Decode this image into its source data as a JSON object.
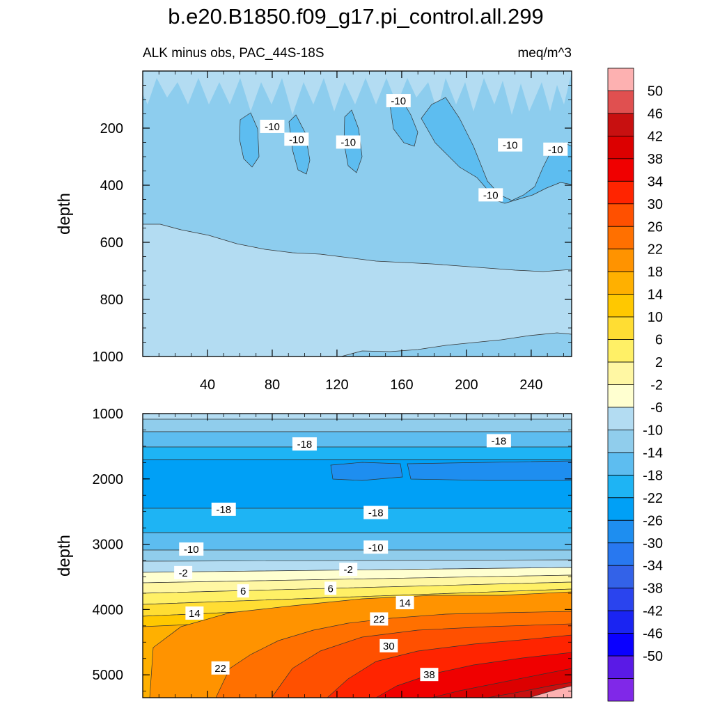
{
  "title": "b.e20.B1850.f09_g17.pi_control.all.299",
  "subtitle_left": "ALK minus obs, PAC_44S-18S",
  "subtitle_right": "meq/m^3",
  "chart_data": [
    {
      "type": "contour",
      "panel": "upper",
      "ylabel": "depth",
      "xlabel": "",
      "ylim": [
        0,
        1000
      ],
      "y_inverted": true,
      "xlim": [
        0,
        265
      ],
      "xticks": [
        40,
        80,
        120,
        160,
        200,
        240
      ],
      "yticks": [
        200,
        400,
        600,
        800,
        1000
      ],
      "contour_labels": [
        {
          "text": "-10",
          "x": 80,
          "y": 195
        },
        {
          "text": "-10",
          "x": 95,
          "y": 240
        },
        {
          "text": "-10",
          "x": 127,
          "y": 250
        },
        {
          "text": "-10",
          "x": 158,
          "y": 105
        },
        {
          "text": "-10",
          "x": 227,
          "y": 260
        },
        {
          "text": "-10",
          "x": 255,
          "y": 275
        },
        {
          "text": "-10",
          "x": 215,
          "y": 435
        }
      ]
    },
    {
      "type": "contour",
      "panel": "lower",
      "ylabel": "depth",
      "xlabel": "",
      "ylim": [
        1000,
        5350
      ],
      "y_inverted": true,
      "xlim": [
        0,
        265
      ],
      "yticks": [
        1000,
        2000,
        3000,
        4000,
        5000
      ],
      "contour_labels": [
        {
          "text": "-18",
          "x": 100,
          "y": 1470
        },
        {
          "text": "-18",
          "x": 220,
          "y": 1420
        },
        {
          "text": "-18",
          "x": 50,
          "y": 2470
        },
        {
          "text": "-18",
          "x": 144,
          "y": 2520
        },
        {
          "text": "-10",
          "x": 30,
          "y": 3080
        },
        {
          "text": "-10",
          "x": 144,
          "y": 3050
        },
        {
          "text": "-2",
          "x": 25,
          "y": 3440
        },
        {
          "text": "-2",
          "x": 127,
          "y": 3390
        },
        {
          "text": "6",
          "x": 62,
          "y": 3720
        },
        {
          "text": "6",
          "x": 116,
          "y": 3680
        },
        {
          "text": "14",
          "x": 32,
          "y": 4060
        },
        {
          "text": "14",
          "x": 162,
          "y": 3900
        },
        {
          "text": "22",
          "x": 146,
          "y": 4150
        },
        {
          "text": "22",
          "x": 48,
          "y": 4900
        },
        {
          "text": "30",
          "x": 152,
          "y": 4560
        },
        {
          "text": "38",
          "x": 177,
          "y": 5000
        }
      ]
    }
  ],
  "colorbar": {
    "labels": [
      "50",
      "46",
      "42",
      "38",
      "34",
      "30",
      "26",
      "22",
      "18",
      "14",
      "10",
      "6",
      "2",
      "-2",
      "-6",
      "-10",
      "-14",
      "-18",
      "-22",
      "-26",
      "-30",
      "-34",
      "-38",
      "-42",
      "-46",
      "-50"
    ],
    "colors": [
      "#fdb1b1",
      "#e05050",
      "#c81010",
      "#dc0000",
      "#f00000",
      "#ff2400",
      "#ff5000",
      "#ff7000",
      "#ff9300",
      "#ffb000",
      "#ffc800",
      "#ffdd33",
      "#fff066",
      "#fff7a3",
      "#ffffd0",
      "#b3dcf2",
      "#90cdec",
      "#5dbdf0",
      "#1eb4f4",
      "#00a0f6",
      "#1e8ef0",
      "#2878f0",
      "#3362e8",
      "#2a44ee",
      "#1a24f2",
      "#0a00ff",
      "#5a1ae6",
      "#8028e8"
    ]
  }
}
